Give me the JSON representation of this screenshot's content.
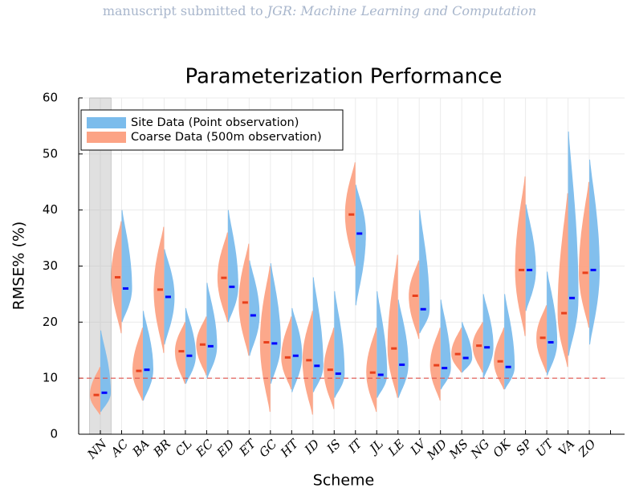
{
  "header": {
    "prefix": "manuscript submitted to",
    "journal": "JGR: Machine Learning and Computation"
  },
  "chart_data": {
    "type": "split-violin",
    "title": "Parameterization Performance",
    "x_label": "Scheme",
    "y_label": "RMSE% (%)",
    "categories": [
      "NN",
      "AC",
      "BA",
      "BR",
      "CL",
      "EC",
      "ED",
      "ET",
      "GC",
      "HT",
      "ID",
      "IS",
      "IT",
      "JL",
      "LE",
      "LV",
      "MD",
      "MS",
      "NG",
      "OK",
      "SP",
      "UT",
      "VA",
      "ZO"
    ],
    "ylim": [
      0,
      60
    ],
    "yticks": [
      0,
      10,
      20,
      30,
      40,
      50,
      60
    ],
    "grid": true,
    "highlight": "NN",
    "hline": {
      "value": 10,
      "color": "#e0524a"
    },
    "legend": "top-left",
    "series": [
      {
        "name": "Site Data (Point observation)",
        "color": "#7bbcec",
        "median_color": "#0000ff",
        "side": "right",
        "values": [
          7.4,
          26,
          11.5,
          24.5,
          14,
          15.7,
          26.3,
          21.2,
          16.2,
          14,
          12.2,
          10.8,
          35.8,
          10.6,
          12.4,
          22.3,
          11.8,
          13.6,
          15.5,
          12,
          29.3,
          16.4,
          24.3,
          29.3
        ],
        "min": [
          4,
          20,
          6,
          16,
          9,
          10,
          20,
          14,
          9,
          7.5,
          7.5,
          6.5,
          23,
          6.5,
          6.5,
          18,
          8,
          11,
          10,
          8,
          22,
          10.5,
          14,
          16
        ],
        "max": [
          18.5,
          40,
          22,
          33,
          22.5,
          27,
          40,
          31,
          30.5,
          22.5,
          28,
          25.5,
          44.5,
          25.5,
          24,
          40,
          24,
          20,
          25,
          25,
          41,
          29,
          54,
          49
        ]
      },
      {
        "name": "Coarse Data (500m observation)",
        "color": "#fca385",
        "median_color": "#e8401c",
        "side": "left",
        "values": [
          7,
          28,
          11.3,
          25.8,
          14.8,
          16,
          27.9,
          23.5,
          16.4,
          13.7,
          13.2,
          11.5,
          39.2,
          11,
          15.3,
          24.7,
          12.3,
          14.3,
          15.8,
          13,
          29.3,
          17.2,
          21.6,
          28.8
        ],
        "min": [
          3.5,
          18,
          6,
          14.5,
          9,
          10.5,
          20,
          14,
          4,
          8,
          3.5,
          4.5,
          30,
          4,
          6.5,
          17,
          6,
          11,
          11,
          8,
          17.5,
          11,
          12,
          19
        ],
        "max": [
          12,
          38,
          19,
          37,
          20,
          21,
          36,
          34,
          30,
          21,
          22,
          19,
          48.5,
          19,
          32,
          31,
          19,
          19,
          20,
          19,
          46,
          23,
          43,
          45
        ]
      }
    ]
  }
}
